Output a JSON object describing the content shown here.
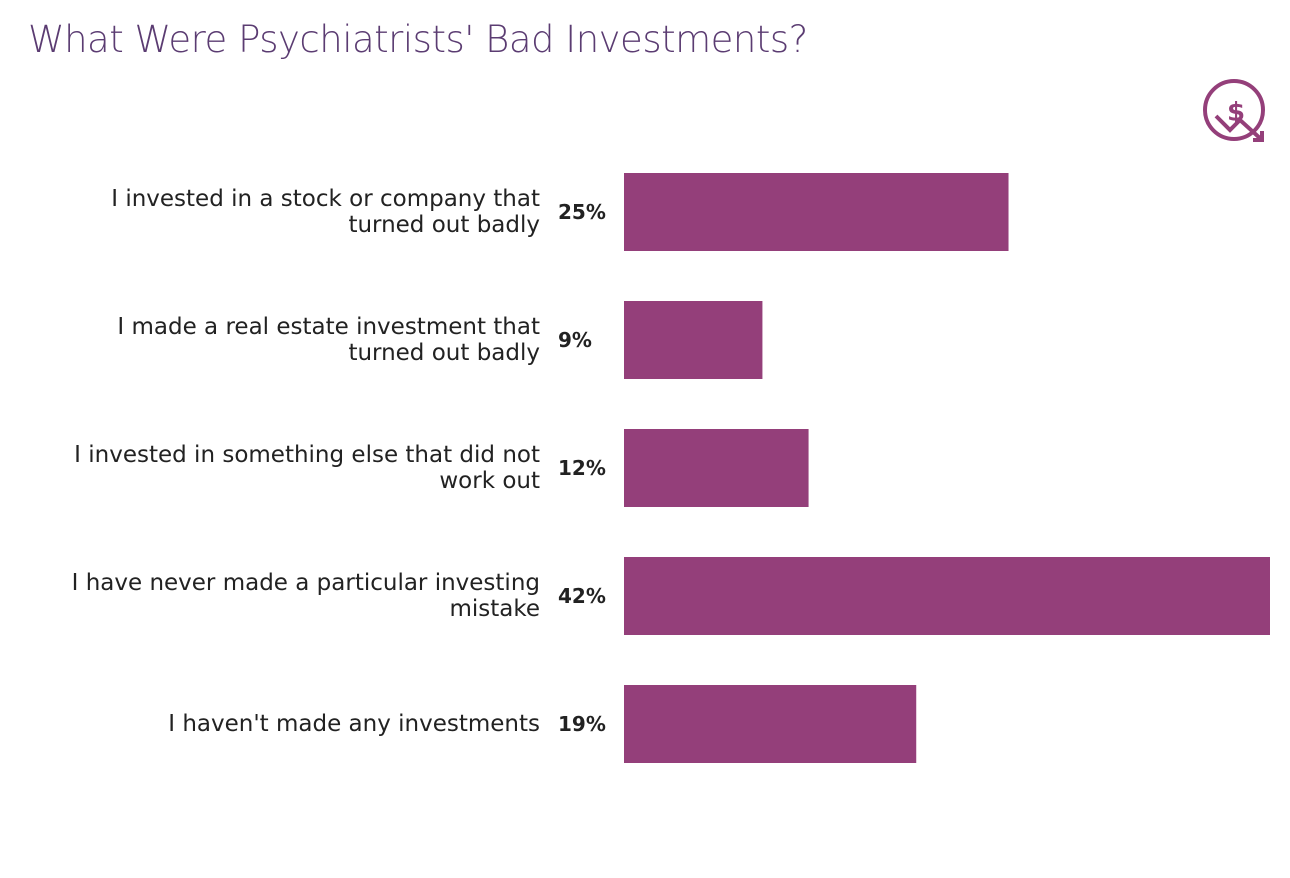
{
  "chart_data": {
    "type": "bar",
    "orientation": "horizontal",
    "title": "What Were Psychiatrists' Bad Investments?",
    "categories": [
      "I invested in a stock or company that turned out badly",
      "I made a real estate investment that turned out badly",
      "I invested in something else that did not work out",
      "I have never made a particular investing mistake",
      "I haven't made any investments"
    ],
    "values": [
      25,
      9,
      12,
      42,
      19
    ],
    "value_labels": [
      "25%",
      "9%",
      "12%",
      "42%",
      "19%"
    ],
    "color": "#943f7a",
    "xlim": [
      0,
      42
    ]
  }
}
